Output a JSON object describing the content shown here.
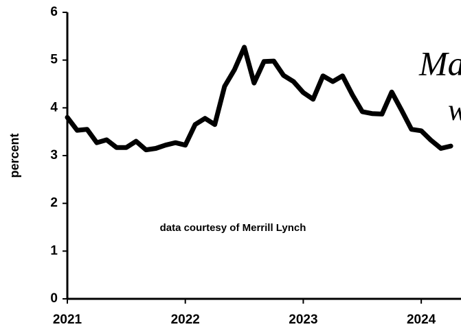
{
  "chart_data": {
    "type": "line",
    "ylabel": "percent",
    "annotations": [
      "data courtesy of Merrill Lynch",
      "Ma",
      "w"
    ],
    "x": [
      2021,
      2021.083,
      2021.167,
      2021.25,
      2021.333,
      2021.417,
      2021.5,
      2021.583,
      2021.667,
      2021.75,
      2021.833,
      2021.917,
      2022,
      2022.083,
      2022.167,
      2022.25,
      2022.333,
      2022.417,
      2022.5,
      2022.583,
      2022.667,
      2022.75,
      2022.833,
      2022.917,
      2023,
      2023.083,
      2023.167,
      2023.25,
      2023.333,
      2023.417,
      2023.5,
      2023.583,
      2023.667,
      2023.75,
      2023.833,
      2023.917,
      2024,
      2024.083,
      2024.167,
      2024.25
    ],
    "series": [
      {
        "color": "#000000",
        "values": [
          3.8,
          3.53,
          3.55,
          3.27,
          3.33,
          3.17,
          3.17,
          3.3,
          3.12,
          3.15,
          3.22,
          3.27,
          3.22,
          3.65,
          3.78,
          3.65,
          4.45,
          4.8,
          5.27,
          4.52,
          4.97,
          4.98,
          4.68,
          4.55,
          4.32,
          4.18,
          4.67,
          4.55,
          4.67,
          4.27,
          3.92,
          3.88,
          3.87,
          4.33,
          3.95,
          3.55,
          3.52,
          3.32,
          3.15,
          3.2
        ]
      }
    ],
    "xlim": [
      2021,
      2024.337
    ],
    "xticks": [
      2021,
      2022,
      2023,
      2024
    ],
    "ylim": [
      0,
      6
    ],
    "yticks": [
      0,
      1,
      2,
      3,
      4,
      5,
      6
    ],
    "grid": false
  }
}
